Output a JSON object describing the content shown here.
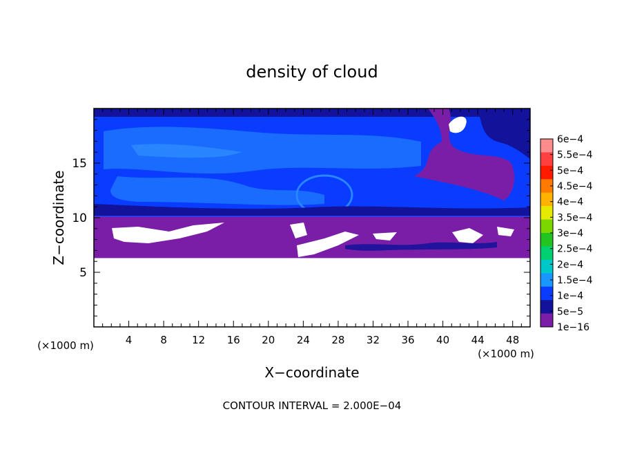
{
  "chart_data": {
    "type": "heatmap",
    "title": "density of cloud",
    "xlabel": "X−coordinate",
    "ylabel": "Z−coordinate",
    "x_unit": "(×1000 m)",
    "x_unit_right": "(×1000 m)",
    "xlim": [
      0,
      50
    ],
    "ylim": [
      0,
      20
    ],
    "x_ticks": [
      "4",
      "8",
      "12",
      "16",
      "20",
      "24",
      "28",
      "32",
      "36",
      "40",
      "44",
      "48"
    ],
    "y_ticks": [
      "5",
      "10",
      "15"
    ],
    "footer": "CONTOUR INTERVAL = 2.000E−04",
    "colorbar": {
      "labels": [
        "6e−4",
        "5.5e−4",
        "5e−4",
        "4.5e−4",
        "4e−4",
        "3.5e−4",
        "3e−4",
        "2.5e−4",
        "2e−4",
        "1.5e−4",
        "1e−4",
        "5e−5",
        "1e−16"
      ],
      "colors": [
        "#ff8c8c",
        "#ff4040",
        "#ff1a00",
        "#ff7a00",
        "#ffb300",
        "#e6ea00",
        "#7cd600",
        "#22c422",
        "#00d070",
        "#00c8c8",
        "#1a96ff",
        "#0a3cff",
        "#12129a",
        "#7a1ea8"
      ]
    },
    "regions": {
      "cloud_top_z": 19.5,
      "cloud_base_z": 6.3,
      "purple_band_top_z": 10.1,
      "description_levels": [
        "1e−16",
        "5e−5",
        "1e−4",
        "1.5e−4"
      ]
    }
  },
  "colors": {
    "purple": "#7a1ea8",
    "deep_blue": "#12129a",
    "mid_blue": "#0a3cff",
    "light_blue": "#1a6cff",
    "pale_blue": "#2a86ff"
  }
}
